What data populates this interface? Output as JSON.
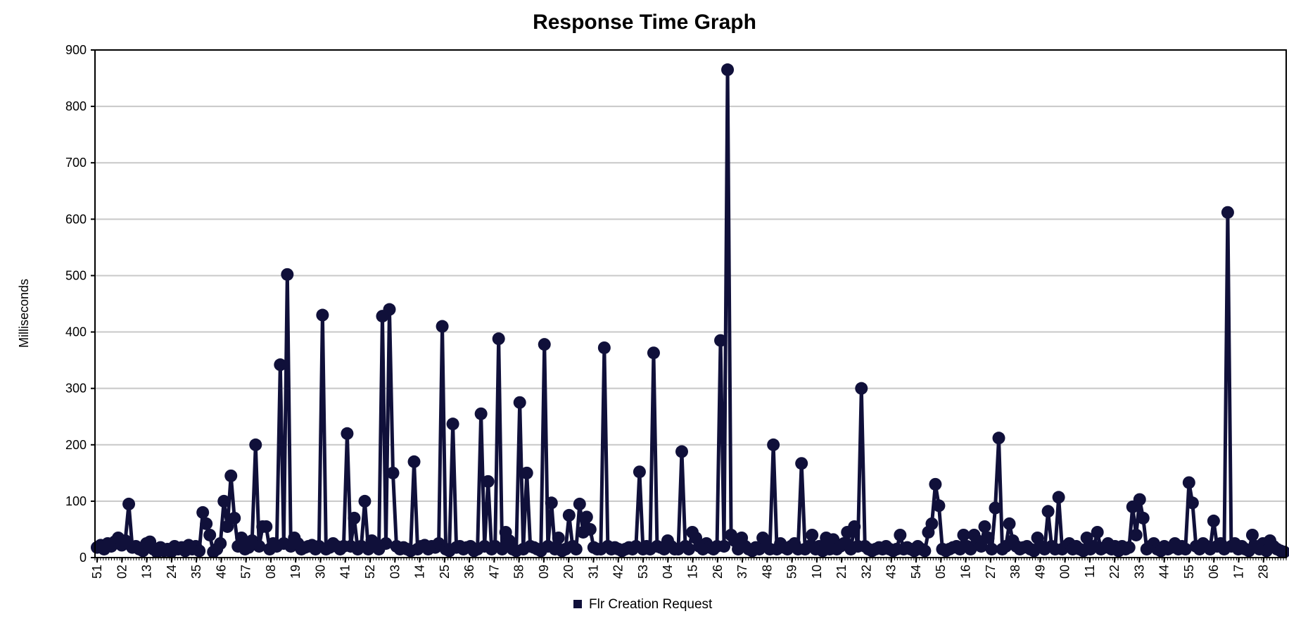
{
  "chart_data": {
    "type": "line",
    "title": "Response Time Graph",
    "xlabel": "",
    "ylabel": "Milliseconds",
    "ylim": [
      0,
      900
    ],
    "yticks": [
      0,
      100,
      200,
      300,
      400,
      500,
      600,
      700,
      800,
      900
    ],
    "grid": true,
    "legend_position": "bottom",
    "colors": {
      "series": "#10103a",
      "grid": "#c8c8c8",
      "axis": "#000000"
    },
    "x_tick_labels": [
      "51",
      "02",
      "13",
      "24",
      "35",
      "46",
      "57",
      "08",
      "19",
      "30",
      "41",
      "52",
      "03",
      "14",
      "25",
      "36",
      "47",
      "58",
      "09",
      "20",
      "31",
      "42",
      "53",
      "04",
      "15",
      "26",
      "37",
      "48",
      "59",
      "10",
      "21",
      "32",
      "43",
      "54",
      "05",
      "16",
      "27",
      "38",
      "49",
      "00",
      "11",
      "22",
      "33",
      "44",
      "55",
      "06",
      "17",
      "28"
    ],
    "series": [
      {
        "name": "Flr Creation Request",
        "values": [
          18,
          22,
          15,
          25,
          20,
          28,
          35,
          22,
          30,
          95,
          18,
          20,
          15,
          12,
          25,
          28,
          15,
          10,
          18,
          12,
          15,
          10,
          20,
          15,
          18,
          12,
          22,
          15,
          20,
          12,
          80,
          60,
          40,
          10,
          15,
          25,
          100,
          55,
          145,
          70,
          20,
          35,
          15,
          18,
          30,
          200,
          20,
          55,
          55,
          15,
          25,
          20,
          342,
          25,
          502,
          20,
          35,
          25,
          15,
          18,
          20,
          22,
          15,
          20,
          430,
          15,
          18,
          25,
          20,
          15,
          20,
          220,
          20,
          70,
          15,
          20,
          100,
          15,
          30,
          20,
          15,
          428,
          25,
          440,
          150,
          20,
          15,
          18,
          15,
          12,
          170,
          15,
          20,
          22,
          15,
          20,
          18,
          25,
          410,
          15,
          12,
          237,
          18,
          20,
          15,
          18,
          20,
          12,
          15,
          255,
          20,
          135,
          15,
          20,
          388,
          15,
          45,
          30,
          15,
          12,
          275,
          15,
          150,
          20,
          18,
          15,
          12,
          378,
          20,
          97,
          15,
          35,
          12,
          15,
          75,
          20,
          15,
          95,
          45,
          72,
          50,
          18,
          15,
          15,
          372,
          20,
          15,
          18,
          15,
          12,
          15,
          18,
          15,
          20,
          152,
          15,
          20,
          15,
          363,
          20,
          18,
          15,
          30,
          20,
          15,
          15,
          188,
          20,
          15,
          45,
          35,
          20,
          15,
          25,
          18,
          15,
          20,
          385,
          20,
          865,
          40,
          30,
          15,
          35,
          20,
          15,
          12,
          18,
          15,
          35,
          20,
          15,
          200,
          15,
          25,
          18,
          15,
          20,
          25,
          15,
          167,
          15,
          20,
          40,
          15,
          20,
          12,
          35,
          15,
          32,
          15,
          20,
          25,
          45,
          15,
          55,
          20,
          300,
          20,
          15,
          12,
          15,
          18,
          15,
          20,
          15,
          12,
          15,
          40,
          15,
          18,
          15,
          12,
          20,
          15,
          12,
          45,
          60,
          130,
          92,
          15,
          12,
          15,
          18,
          20,
          15,
          40,
          20,
          15,
          40,
          30,
          20,
          55,
          35,
          15,
          88,
          212,
          15,
          20,
          60,
          30,
          20,
          15,
          18,
          20,
          15,
          12,
          35,
          20,
          15,
          82,
          20,
          15,
          107,
          15,
          20,
          25,
          15,
          20,
          15,
          12,
          35,
          15,
          20,
          45,
          15,
          18,
          25,
          15,
          20,
          12,
          20,
          15,
          18,
          90,
          40,
          103,
          70,
          15,
          20,
          25,
          15,
          12,
          20,
          15,
          18,
          25,
          15,
          20,
          15,
          133,
          97,
          20,
          15,
          25,
          20,
          15,
          65,
          20,
          25,
          15,
          612,
          20,
          25,
          15,
          20,
          15,
          12,
          40,
          20,
          15,
          25,
          12,
          30,
          20,
          15,
          12,
          10
        ]
      }
    ]
  }
}
